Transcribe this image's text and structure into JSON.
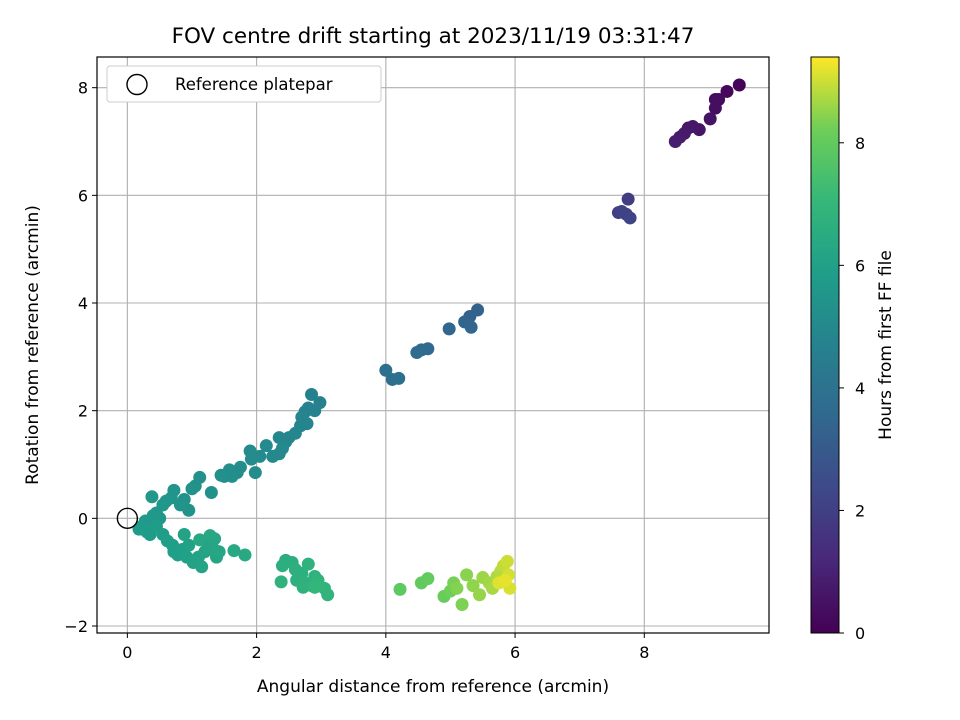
{
  "chart_data": {
    "type": "scatter",
    "title": "FOV centre drift starting at 2023/11/19 03:31:47",
    "xlabel": "Angular distance from reference (arcmin)",
    "ylabel": "Rotation from reference (arcmin)",
    "xlim": [
      -0.47,
      9.93
    ],
    "ylim": [
      -2.13,
      8.57
    ],
    "xticks": [
      "0",
      "2",
      "4",
      "6",
      "8"
    ],
    "yticks": [
      "−2",
      "0",
      "2",
      "4",
      "6",
      "8"
    ],
    "grid": true,
    "legend": {
      "position": "top-left",
      "entries": [
        "Reference platepar"
      ]
    },
    "reference_point": {
      "x": 0,
      "y": 0,
      "label": "Reference platepar"
    },
    "colorbar": {
      "label": "Hours from first FF file",
      "range": [
        0,
        9.4
      ],
      "ticks": [
        "0",
        "2",
        "4",
        "6",
        "8"
      ],
      "colormap": "viridis"
    },
    "points": [
      [
        9.47,
        8.05,
        0.1
      ],
      [
        9.28,
        7.93,
        0.2
      ],
      [
        9.15,
        7.78,
        0.3
      ],
      [
        9.1,
        7.78,
        0.35
      ],
      [
        9.1,
        7.62,
        0.4
      ],
      [
        9.02,
        7.42,
        0.5
      ],
      [
        8.85,
        7.22,
        0.6
      ],
      [
        8.75,
        7.28,
        0.65
      ],
      [
        8.68,
        7.25,
        0.7
      ],
      [
        8.62,
        7.15,
        0.75
      ],
      [
        8.55,
        7.08,
        0.8
      ],
      [
        8.48,
        7.0,
        0.85
      ],
      [
        7.75,
        5.93,
        1.9
      ],
      [
        7.6,
        5.68,
        2.0
      ],
      [
        7.65,
        5.7,
        2.05
      ],
      [
        7.72,
        5.65,
        2.1
      ],
      [
        7.78,
        5.58,
        2.15
      ],
      [
        5.42,
        3.87,
        3.3
      ],
      [
        5.3,
        3.75,
        3.35
      ],
      [
        5.22,
        3.65,
        3.4
      ],
      [
        5.32,
        3.55,
        3.45
      ],
      [
        4.98,
        3.52,
        3.5
      ],
      [
        4.65,
        3.15,
        3.6
      ],
      [
        4.55,
        3.13,
        3.65
      ],
      [
        4.48,
        3.08,
        3.7
      ],
      [
        4.0,
        2.75,
        3.8
      ],
      [
        4.1,
        2.58,
        3.85
      ],
      [
        4.2,
        2.6,
        3.9
      ],
      [
        2.98,
        2.15,
        4.6
      ],
      [
        2.85,
        2.3,
        4.65
      ],
      [
        2.9,
        2.0,
        4.7
      ],
      [
        2.8,
        2.05,
        4.72
      ],
      [
        2.75,
        1.98,
        4.75
      ],
      [
        2.7,
        1.88,
        4.78
      ],
      [
        2.78,
        1.76,
        4.8
      ],
      [
        2.68,
        1.72,
        4.82
      ],
      [
        2.6,
        1.58,
        4.85
      ],
      [
        2.5,
        1.5,
        4.88
      ],
      [
        2.45,
        1.42,
        4.9
      ],
      [
        2.35,
        1.5,
        4.92
      ],
      [
        2.4,
        1.3,
        4.95
      ],
      [
        2.35,
        1.2,
        4.97
      ],
      [
        2.25,
        1.15,
        5.0
      ],
      [
        2.15,
        1.35,
        5.02
      ],
      [
        2.05,
        1.15,
        5.05
      ],
      [
        1.9,
        1.25,
        5.07
      ],
      [
        1.92,
        1.1,
        5.1
      ],
      [
        1.98,
        0.85,
        5.12
      ],
      [
        1.75,
        0.95,
        5.15
      ],
      [
        1.7,
        0.85,
        5.17
      ],
      [
        1.62,
        0.78,
        5.2
      ],
      [
        1.58,
        0.9,
        5.22
      ],
      [
        1.5,
        0.78,
        5.25
      ],
      [
        1.45,
        0.8,
        5.27
      ],
      [
        1.3,
        0.48,
        5.3
      ],
      [
        1.12,
        0.76,
        5.32
      ],
      [
        1.05,
        0.6,
        5.35
      ],
      [
        1.0,
        0.55,
        5.37
      ],
      [
        0.95,
        0.15,
        5.4
      ],
      [
        0.88,
        0.35,
        5.42
      ],
      [
        0.82,
        0.25,
        5.45
      ],
      [
        0.72,
        0.52,
        5.47
      ],
      [
        0.68,
        0.38,
        5.5
      ],
      [
        0.6,
        0.32,
        5.52
      ],
      [
        0.55,
        0.25,
        5.55
      ],
      [
        0.5,
        0.0,
        5.57
      ],
      [
        0.45,
        0.1,
        5.6
      ],
      [
        0.38,
        0.4,
        5.62
      ],
      [
        0.4,
        0.05,
        5.65
      ],
      [
        0.32,
        -0.1,
        5.67
      ],
      [
        0.28,
        -0.05,
        5.7
      ],
      [
        0.22,
        -0.15,
        5.72
      ],
      [
        0.18,
        -0.2,
        5.75
      ],
      [
        0.3,
        -0.25,
        5.78
      ],
      [
        0.35,
        -0.3,
        5.8
      ],
      [
        0.45,
        -0.15,
        5.82
      ],
      [
        0.55,
        -0.3,
        5.85
      ],
      [
        0.62,
        -0.42,
        5.88
      ],
      [
        0.7,
        -0.5,
        5.9
      ],
      [
        0.72,
        -0.62,
        5.92
      ],
      [
        0.78,
        -0.68,
        5.95
      ],
      [
        0.85,
        -0.58,
        5.97
      ],
      [
        0.92,
        -0.72,
        6.0
      ],
      [
        0.95,
        -0.5,
        6.02
      ],
      [
        1.02,
        -0.82,
        6.05
      ],
      [
        0.88,
        -0.3,
        6.07
      ],
      [
        1.1,
        -0.72,
        6.1
      ],
      [
        1.15,
        -0.9,
        6.12
      ],
      [
        1.2,
        -0.62,
        6.15
      ],
      [
        1.25,
        -0.45,
        6.17
      ],
      [
        1.32,
        -0.55,
        6.2
      ],
      [
        1.38,
        -0.72,
        6.22
      ],
      [
        1.42,
        -0.62,
        6.25
      ],
      [
        1.35,
        -0.38,
        6.27
      ],
      [
        1.28,
        -0.32,
        6.3
      ],
      [
        1.12,
        -0.4,
        6.32
      ],
      [
        1.65,
        -0.6,
        6.35
      ],
      [
        1.82,
        -0.68,
        6.37
      ],
      [
        2.45,
        -0.78,
        6.6
      ],
      [
        2.55,
        -0.82,
        6.62
      ],
      [
        2.4,
        -0.88,
        6.64
      ],
      [
        2.6,
        -0.95,
        6.66
      ],
      [
        2.7,
        -1.02,
        6.68
      ],
      [
        2.62,
        -1.15,
        6.7
      ],
      [
        2.75,
        -1.2,
        6.72
      ],
      [
        2.72,
        -1.28,
        6.74
      ],
      [
        2.85,
        -1.25,
        6.76
      ],
      [
        2.9,
        -1.08,
        6.78
      ],
      [
        2.8,
        -0.85,
        6.8
      ],
      [
        2.38,
        -1.18,
        6.82
      ],
      [
        2.95,
        -1.15,
        6.84
      ],
      [
        3.05,
        -1.3,
        6.86
      ],
      [
        3.1,
        -1.42,
        6.88
      ],
      [
        2.95,
        -1.25,
        6.9
      ],
      [
        2.9,
        -1.28,
        7.0
      ],
      [
        4.22,
        -1.32,
        7.9
      ],
      [
        4.55,
        -1.2,
        7.95
      ],
      [
        4.65,
        -1.12,
        8.0
      ],
      [
        4.9,
        -1.45,
        8.1
      ],
      [
        5.0,
        -1.35,
        8.2
      ],
      [
        5.05,
        -1.2,
        8.3
      ],
      [
        5.18,
        -1.6,
        8.35
      ],
      [
        5.1,
        -1.3,
        8.4
      ],
      [
        5.25,
        -1.05,
        8.45
      ],
      [
        5.35,
        -1.25,
        8.5
      ],
      [
        5.45,
        -1.42,
        8.55
      ],
      [
        5.5,
        -1.1,
        8.6
      ],
      [
        5.6,
        -1.2,
        8.65
      ],
      [
        5.65,
        -1.3,
        8.7
      ],
      [
        5.72,
        -1.08,
        8.75
      ],
      [
        5.78,
        -0.98,
        8.8
      ],
      [
        5.82,
        -0.88,
        8.9
      ],
      [
        5.88,
        -0.8,
        9.0
      ],
      [
        5.9,
        -1.05,
        9.05
      ],
      [
        5.92,
        -1.3,
        9.1
      ],
      [
        5.75,
        -1.2,
        9.15
      ],
      [
        5.85,
        -1.15,
        9.2
      ]
    ]
  }
}
